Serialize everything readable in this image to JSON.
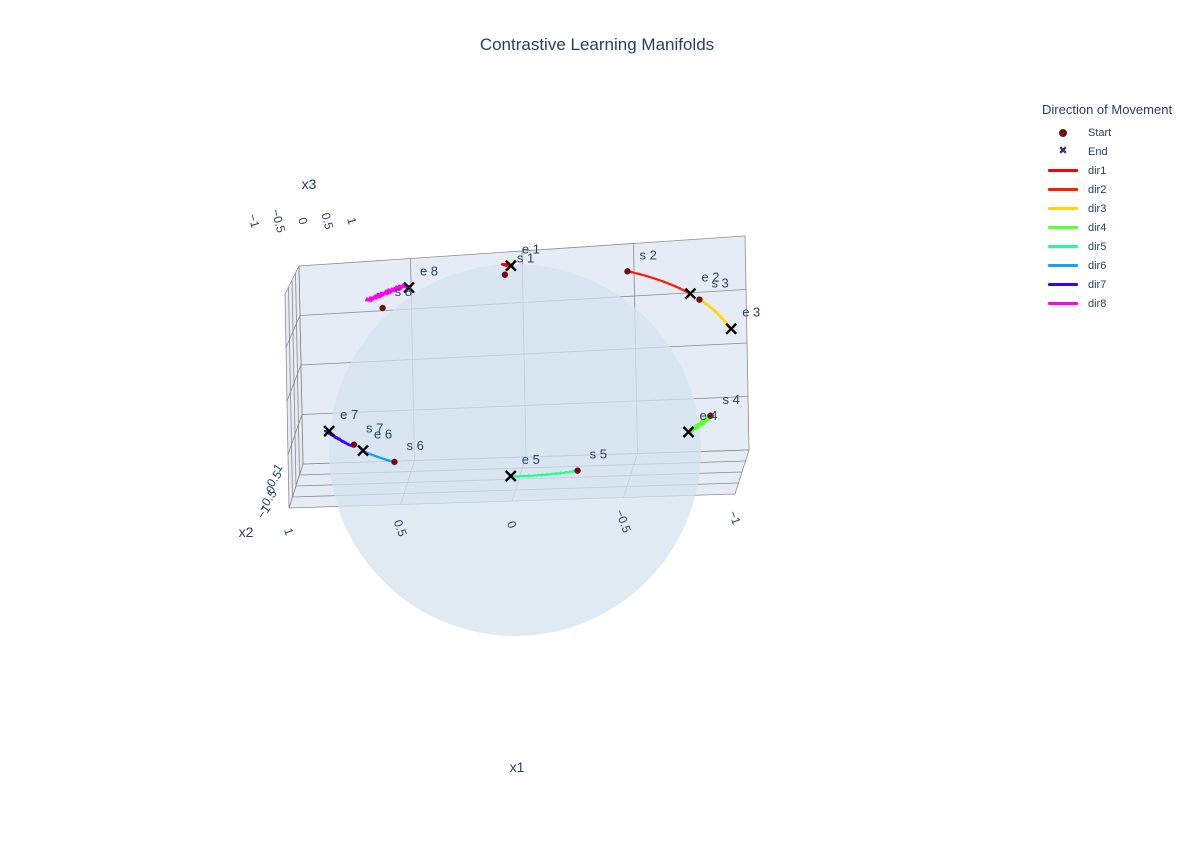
{
  "chart_data": {
    "type": "scatter3d",
    "title": "Contrastive Learning Manifolds",
    "axes": {
      "x1": {
        "label": "x1",
        "range": [
          -1,
          1
        ],
        "ticks": [
          "1",
          "0.5",
          "0",
          "−0.5",
          "−1"
        ]
      },
      "x2": {
        "label": "x2",
        "range": [
          -1,
          1
        ],
        "ticks": [
          "−1",
          "−0.5",
          "0",
          "0.5",
          "1"
        ]
      },
      "x3": {
        "label": "x3",
        "range": [
          -1,
          1
        ],
        "ticks": [
          "−1",
          "−0.5",
          "0",
          "0.5",
          "1"
        ]
      }
    },
    "legend": {
      "title": "Direction of Movement",
      "placement": "top-right",
      "start_label": "Start",
      "end_label": "End"
    },
    "colors": {
      "dir1": "#ff0000",
      "dir2": "#ff1a00",
      "dir3": "#ffd700",
      "dir4": "#5cff2e",
      "dir5": "#1fff8f",
      "dir6": "#1a9fff",
      "dir7": "#3a00ff",
      "dir8": "#ff00f0",
      "start_marker": "#8b0000",
      "end_marker": "#000000",
      "sphere": "#d4e3ef"
    },
    "series": [
      {
        "name": "dir1",
        "start_label": "s 1",
        "end_label": "e 1",
        "start": [
          0.05,
          0.12,
          0.9
        ],
        "end": [
          0.02,
          0.05,
          0.99
        ],
        "jitter": 0.012
      },
      {
        "name": "dir2",
        "start_label": "s 2",
        "end_label": "e 2",
        "start": [
          -0.5,
          0.1,
          0.86
        ],
        "end": [
          -0.78,
          0.1,
          0.62
        ],
        "jitter": 0.006
      },
      {
        "name": "dir3",
        "start_label": "s 3",
        "end_label": "e 3",
        "start": [
          -0.82,
          0.1,
          0.56
        ],
        "end": [
          -0.96,
          0.1,
          0.28
        ],
        "jitter": 0.006
      },
      {
        "name": "dir4",
        "start_label": "s 4",
        "end_label": "e 4",
        "start": [
          -0.86,
          0.1,
          -0.5
        ],
        "end": [
          -0.76,
          0.1,
          -0.64
        ],
        "jitter": 0.01
      },
      {
        "name": "dir5",
        "start_label": "s 5",
        "end_label": "e 5",
        "start": [
          -0.26,
          0.1,
          -0.96
        ],
        "end": [
          0.04,
          0.1,
          -0.99
        ],
        "jitter": 0.004
      },
      {
        "name": "dir6",
        "start_label": "s 6",
        "end_label": "e 6",
        "start": [
          0.56,
          0.1,
          -0.82
        ],
        "end": [
          0.7,
          0.1,
          -0.7
        ],
        "jitter": 0.014
      },
      {
        "name": "dir7",
        "start_label": "s 7",
        "end_label": "e 7",
        "start": [
          0.74,
          0.1,
          -0.64
        ],
        "end": [
          0.85,
          0.1,
          -0.5
        ],
        "jitter": 0.014
      },
      {
        "name": "dir8",
        "start_label": "s 8",
        "end_label": "e 8",
        "start": [
          0.6,
          0.1,
          0.66
        ],
        "end": [
          0.48,
          0.1,
          0.84
        ],
        "jitter": 0.014
      }
    ]
  }
}
